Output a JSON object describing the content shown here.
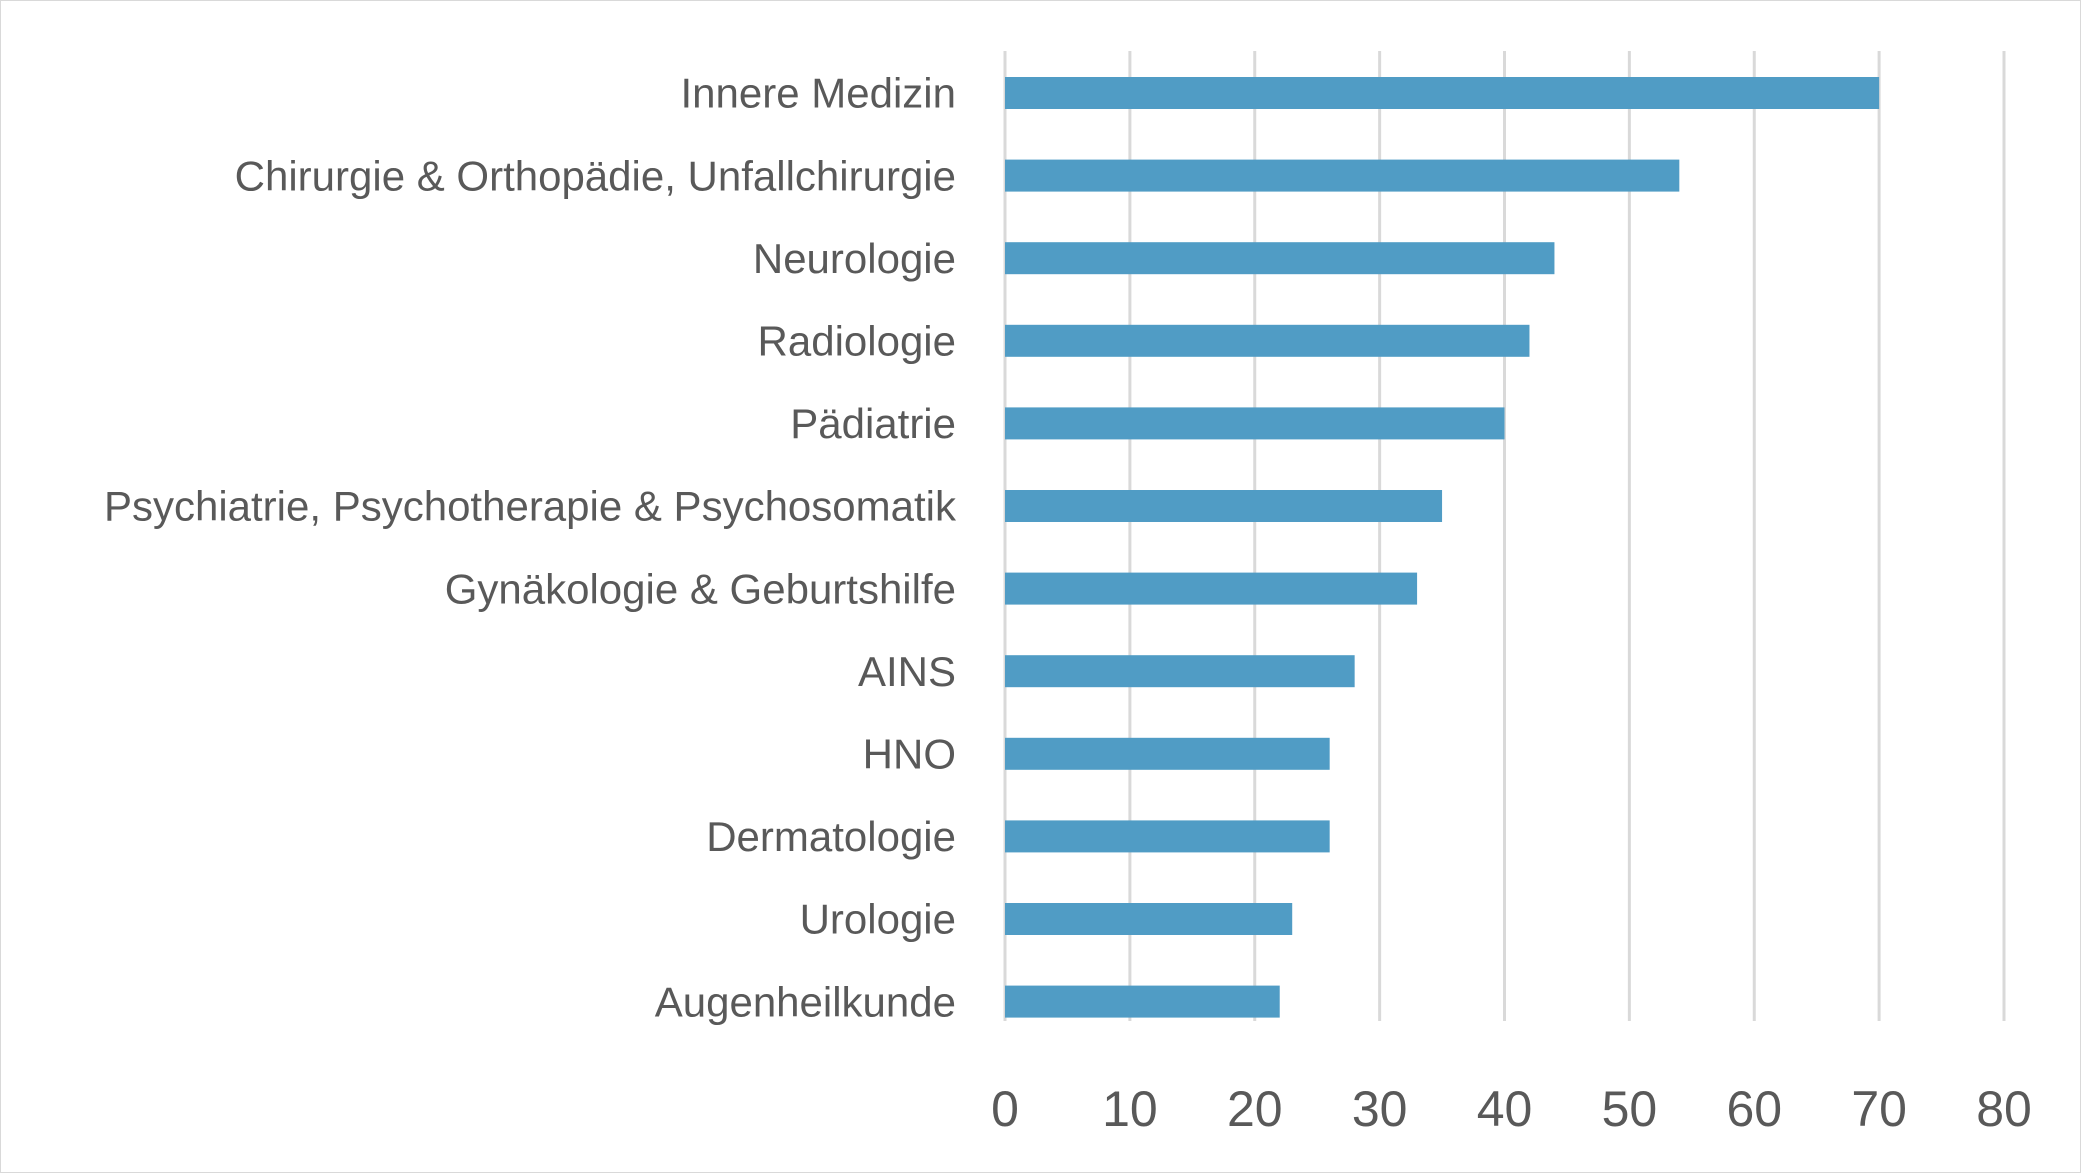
{
  "chart_data": {
    "type": "bar",
    "orientation": "horizontal",
    "title": "",
    "xlabel": "",
    "ylabel": "",
    "categories": [
      "Innere Medizin",
      "Chirurgie & Orthopädie, Unfallchirurgie",
      "Neurologie",
      "Radiologie",
      "Pädiatrie",
      "Psychiatrie, Psychotherapie & Psychosomatik",
      "Gynäkologie & Geburtshilfe",
      "AINS",
      "HNO",
      "Dermatologie",
      "Urologie",
      "Augenheilkunde"
    ],
    "values": [
      70,
      54,
      44,
      42,
      40,
      35,
      33,
      28,
      26,
      26,
      23,
      22
    ],
    "xlim": [
      0,
      80
    ],
    "xticks": [
      0,
      10,
      20,
      30,
      40,
      50,
      60,
      70,
      80
    ],
    "grid": true,
    "legend": "none",
    "bar_color": "#509CC5",
    "grid_color": "#D9D9D9",
    "text_color": "#595959"
  }
}
